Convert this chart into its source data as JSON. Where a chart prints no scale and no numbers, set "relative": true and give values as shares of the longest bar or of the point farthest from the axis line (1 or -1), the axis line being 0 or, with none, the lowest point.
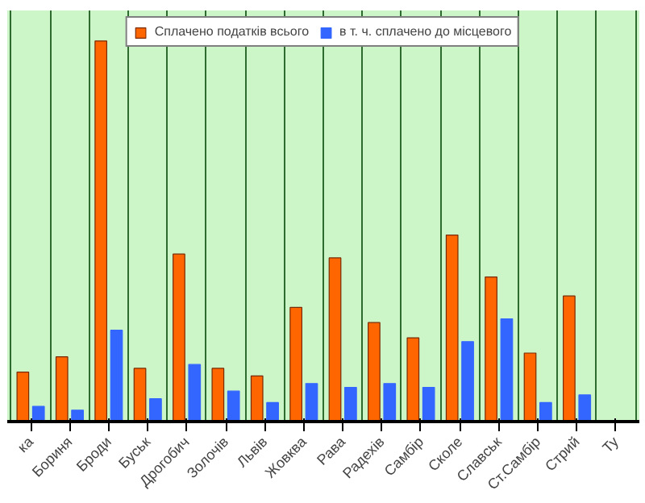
{
  "chart_data": {
    "type": "bar",
    "relative": true,
    "grid": "x",
    "legend": "top",
    "categories": [
      "ка",
      "Бориня",
      "Броди",
      "Буськ",
      "Дрогобич",
      "Золочів",
      "Львів",
      "Жовква",
      "Рава",
      "Радехів",
      "Самбір",
      "Сколе",
      "Славськ",
      "Ст.Самбір",
      "Стрий",
      "Ту"
    ],
    "series": [
      {
        "name": "Сплачено податків всього",
        "color": "#ff6600",
        "values": [
          0.13,
          0.17,
          1,
          0.14,
          0.44,
          0.14,
          0.12,
          0.3,
          0.43,
          0.26,
          0.22,
          0.49,
          0.38,
          0.18,
          0.33,
          null
        ]
      },
      {
        "name": "в т. ч. сплачено до місцевого",
        "color": "#3366ff",
        "values": [
          0.04,
          0.03,
          0.24,
          0.06,
          0.15,
          0.08,
          0.05,
          0.1,
          0.09,
          0.1,
          0.09,
          0.21,
          0.27,
          0.05,
          0.07,
          null
        ]
      }
    ]
  }
}
